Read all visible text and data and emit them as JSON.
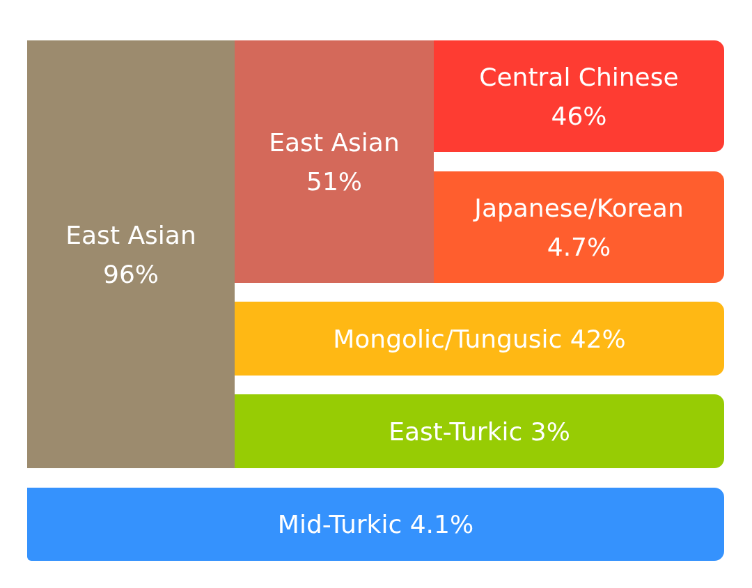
{
  "chart_data": {
    "type": "other",
    "categories": [
      "East Asian",
      "East Asian",
      "Central Chinese",
      "Japanese/Korean",
      "Mongolic/Tungusic",
      "East-Turkic",
      "Mid-Turkic"
    ],
    "values": [
      96,
      51,
      46,
      4.7,
      42,
      3,
      4.1
    ],
    "value_labels": [
      "96%",
      "51%",
      "46%",
      "4.7%",
      "42%",
      "3%",
      "4.1%"
    ],
    "colors": [
      "#9c8b6e",
      "#d4695a",
      "#fe3c32",
      "#ff5e2e",
      "#ffb814",
      "#97cc04",
      "#3592fd"
    ]
  }
}
